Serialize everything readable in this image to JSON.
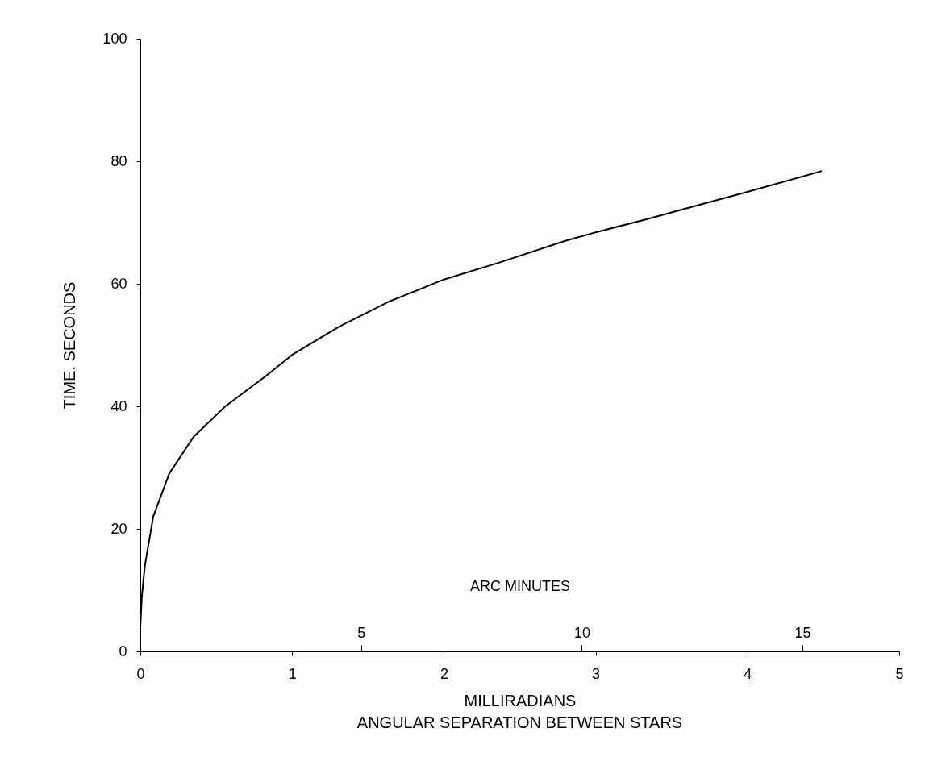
{
  "chart_data": {
    "type": "line",
    "xlabel": "MILLIRADIANS",
    "ylabel": "TIME, SECONDS",
    "x2label": "ARC MINUTES",
    "annotations": [
      "ANGULAR SEPARATION BETWEEN STARS"
    ],
    "x": [
      0,
      0.01,
      0.03,
      0.085,
      0.19,
      0.35,
      0.56,
      0.83,
      1.0,
      1.31,
      1.63,
      2.0,
      2.37,
      2.8,
      3.0,
      3.33,
      3.7,
      4.0,
      4.49
    ],
    "series": [
      {
        "color": "#000000",
        "values": [
          4,
          9,
          14,
          22,
          29,
          35,
          40,
          45,
          48.4,
          53,
          57,
          60.7,
          63.5,
          67,
          68.4,
          70.5,
          73,
          75,
          78.4
        ]
      }
    ],
    "xlim": [
      0,
      5
    ],
    "xticks": [
      0,
      1,
      2,
      3,
      4,
      5
    ],
    "ylim": [
      0,
      100
    ],
    "yticks": [
      0,
      20,
      40,
      60,
      80,
      100
    ],
    "x2lim": [
      0,
      17.19
    ],
    "x2ticks": [
      5,
      10,
      15
    ],
    "grid": false,
    "marker": "none",
    "line_style": "solid"
  }
}
